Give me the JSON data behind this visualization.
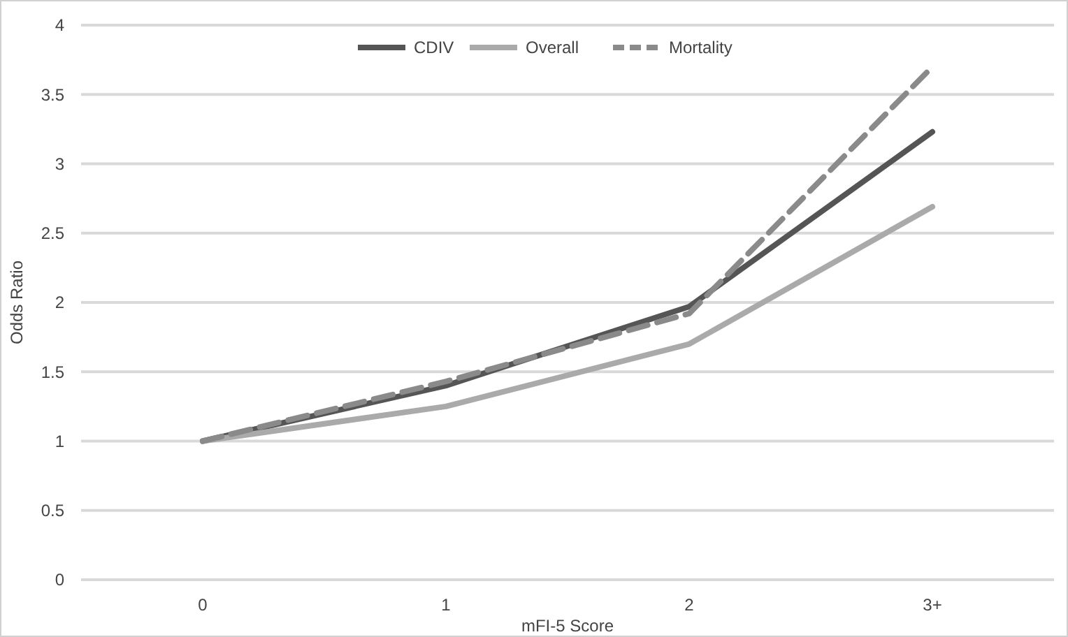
{
  "chart_data": {
    "type": "line",
    "xlabel": "mFI-5 Score",
    "ylabel": "Odds Ratio",
    "categories": [
      "0",
      "1",
      "2",
      "3+"
    ],
    "series": [
      {
        "name": "CDIV",
        "color": "#555555",
        "line_style": "solid",
        "values": [
          1,
          1.4,
          1.97,
          3.23
        ]
      },
      {
        "name": "Overall",
        "color": "#aaaaaa",
        "line_style": "solid",
        "values": [
          1,
          1.25,
          1.7,
          2.69
        ]
      },
      {
        "name": "Mortality",
        "color": "#8a8a8a",
        "line_style": "dashed",
        "values": [
          1,
          1.43,
          1.92,
          3.7
        ]
      }
    ],
    "ylim": [
      0,
      4
    ],
    "yticks": [
      0,
      0.5,
      1,
      1.5,
      2,
      2.5,
      3,
      3.5,
      4
    ],
    "grid": "y",
    "legend": "top",
    "marker": "none"
  }
}
